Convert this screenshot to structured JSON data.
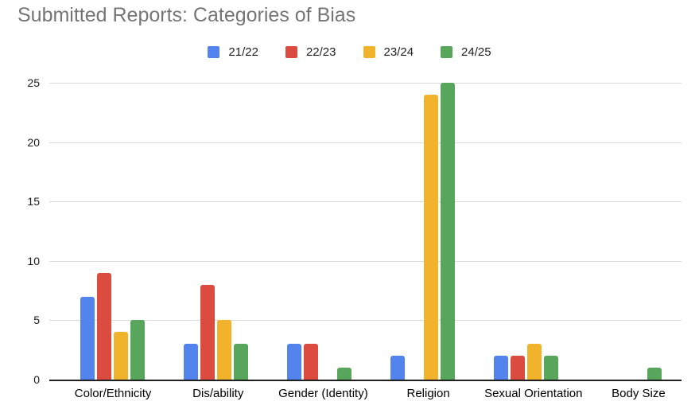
{
  "title": "Submitted Reports: Categories of Bias",
  "colors": {
    "title_text": "#757575",
    "axis_line": "#212121",
    "gridline": "#d9d9d9",
    "tick_text": "#1a1a1a"
  },
  "chart_data": {
    "type": "bar",
    "title": "Submitted Reports: Categories of Bias",
    "xlabel": "",
    "ylabel": "",
    "ylim": [
      0,
      25
    ],
    "yticks": [
      0,
      5,
      10,
      15,
      20,
      25
    ],
    "grid": true,
    "legend_position": "top-center",
    "categories": [
      "Color/Ethnicity",
      "Dis/ability",
      "Gender (Identity)",
      "Religion",
      "Sexual Orientation",
      "Body Size"
    ],
    "series": [
      {
        "name": "21/22",
        "color": "#5383EC",
        "values": [
          7,
          3,
          3,
          2,
          2,
          0
        ]
      },
      {
        "name": "22/23",
        "color": "#DB4B3F",
        "values": [
          9,
          8,
          3,
          0,
          2,
          0
        ]
      },
      {
        "name": "23/24",
        "color": "#F2B32C",
        "values": [
          4,
          5,
          0,
          24,
          3,
          0
        ]
      },
      {
        "name": "24/25",
        "color": "#58A55C",
        "values": [
          5,
          3,
          1,
          25,
          2,
          1
        ]
      }
    ]
  }
}
